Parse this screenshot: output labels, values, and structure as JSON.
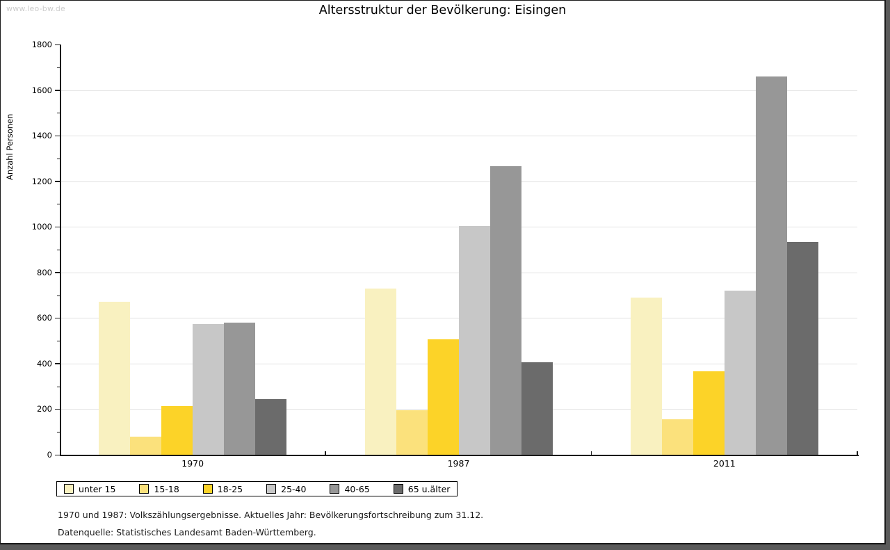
{
  "watermark": "www.leo-bw.de",
  "title": "Altersstruktur der Bevölkerung: Eisingen",
  "footnotes": [
    "1970 und 1987: Volkszählungsergebnisse. Aktuelles Jahr: Bevölkerungsfortschreibung zum 31.12.",
    "Datenquelle: Statistisches Landesamt Baden-Württemberg."
  ],
  "chart_data": {
    "type": "bar",
    "title": "Altersstruktur der Bevölkerung: Eisingen",
    "xlabel": "",
    "ylabel": "Anzahl Personen",
    "ylim": [
      0,
      1800
    ],
    "ytick_step": 200,
    "yminor_step": 100,
    "grid": true,
    "legend_position": "bottom-left",
    "categories": [
      "1970",
      "1987",
      "2011"
    ],
    "series": [
      {
        "name": "unter 15",
        "color": "#f9f1c0",
        "values": [
          670,
          730,
          690
        ]
      },
      {
        "name": "15-18",
        "color": "#fbe17c",
        "values": [
          78,
          195,
          155
        ]
      },
      {
        "name": "18-25",
        "color": "#fcd328",
        "values": [
          215,
          505,
          365
        ]
      },
      {
        "name": "25-40",
        "color": "#c7c7c7",
        "values": [
          575,
          1005,
          720
        ]
      },
      {
        "name": "40-65",
        "color": "#979797",
        "values": [
          580,
          1265,
          1660
        ]
      },
      {
        "name": "65 u.älter",
        "color": "#6b6b6b",
        "values": [
          243,
          405,
          935
        ]
      }
    ]
  }
}
